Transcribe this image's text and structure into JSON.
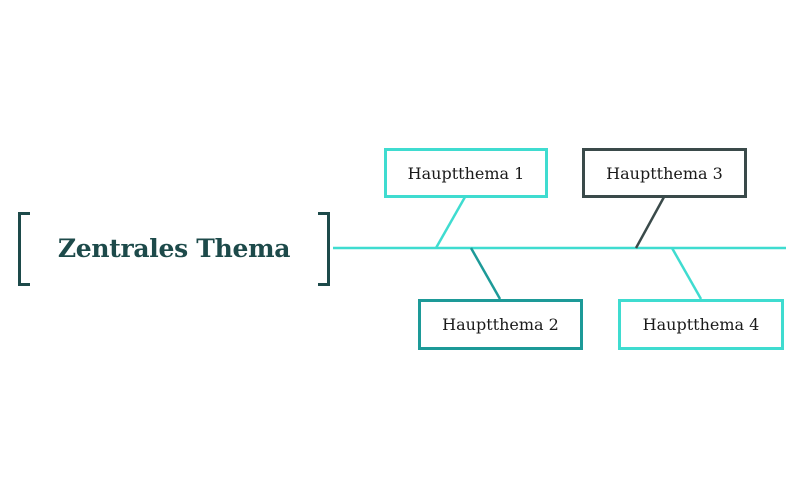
{
  "central_topic": {
    "label": "Zentrales Thema"
  },
  "main_topics": [
    {
      "label": "Hauptthema 1",
      "position": "above",
      "color": "#3fdcd0"
    },
    {
      "label": "Hauptthema 2",
      "position": "below",
      "color": "#1d9a98"
    },
    {
      "label": "Hauptthema 3",
      "position": "above",
      "color": "#3a4a4a"
    },
    {
      "label": "Hauptthema 4",
      "position": "below",
      "color": "#3fdcd0"
    }
  ],
  "colors": {
    "spine": "#3fdcd0",
    "central_text": "#1d4a4a",
    "bracket": "#1d4a4a"
  }
}
